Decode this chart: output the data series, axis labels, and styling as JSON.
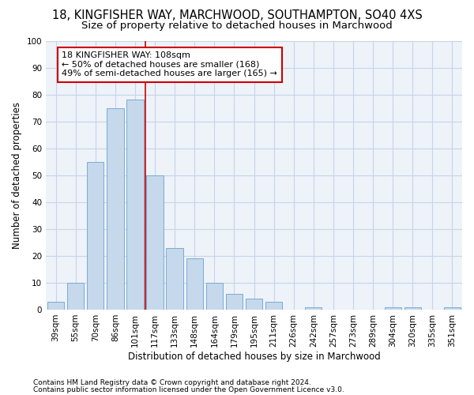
{
  "title_line1": "18, KINGFISHER WAY, MARCHWOOD, SOUTHAMPTON, SO40 4XS",
  "title_line2": "Size of property relative to detached houses in Marchwood",
  "xlabel": "Distribution of detached houses by size in Marchwood",
  "ylabel": "Number of detached properties",
  "categories": [
    "39sqm",
    "55sqm",
    "70sqm",
    "86sqm",
    "101sqm",
    "117sqm",
    "133sqm",
    "148sqm",
    "164sqm",
    "179sqm",
    "195sqm",
    "211sqm",
    "226sqm",
    "242sqm",
    "257sqm",
    "273sqm",
    "289sqm",
    "304sqm",
    "320sqm",
    "335sqm",
    "351sqm"
  ],
  "values": [
    3,
    10,
    55,
    75,
    78,
    50,
    23,
    19,
    10,
    6,
    4,
    3,
    0,
    1,
    0,
    0,
    0,
    1,
    1,
    0,
    1
  ],
  "bar_color": "#c5d8ec",
  "bar_edge_color": "#7aadce",
  "vline_x_index": 4.5,
  "vline_color": "#cc0000",
  "annotation_text": "18 KINGFISHER WAY: 108sqm\n← 50% of detached houses are smaller (168)\n49% of semi-detached houses are larger (165) →",
  "annotation_box_color": "#ffffff",
  "annotation_box_edge": "#cc0000",
  "ylim": [
    0,
    100
  ],
  "yticks": [
    0,
    10,
    20,
    30,
    40,
    50,
    60,
    70,
    80,
    90,
    100
  ],
  "footnote1": "Contains HM Land Registry data © Crown copyright and database right 2024.",
  "footnote2": "Contains public sector information licensed under the Open Government Licence v3.0.",
  "bg_color": "#ffffff",
  "plot_bg_color": "#eef2f9",
  "title1_fontsize": 10.5,
  "title2_fontsize": 9.5,
  "axis_label_fontsize": 8.5,
  "tick_fontsize": 7.5,
  "annotation_fontsize": 8,
  "footnote_fontsize": 6.5
}
